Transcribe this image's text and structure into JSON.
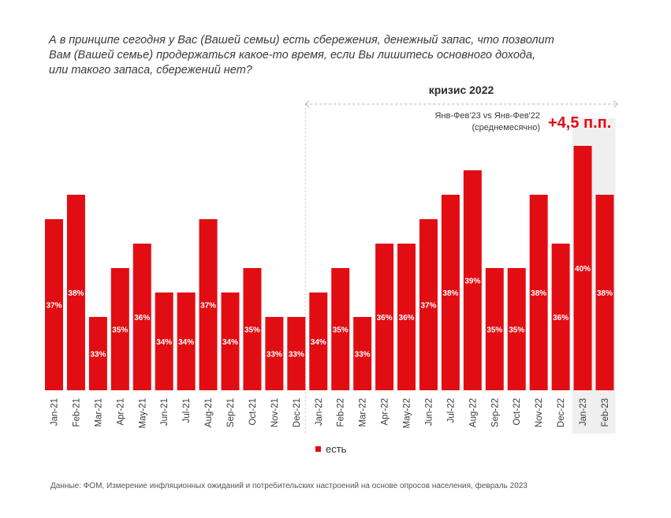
{
  "question": {
    "line1": "А в принципе сегодня у Вас (Вашей семьи) есть сбережения, денежный запас, что позволит",
    "line2": "Вам (Вашей семье) продержаться какое-то время, если Вы лишитесь основного дохода,",
    "line3": "или такого запаса, сбережений нет?"
  },
  "crisis": {
    "label": "кризис 2022",
    "compare_line1": "Янв-Фев'23 vs Янв-Фев'22",
    "compare_line2": "(среднемесячно)",
    "delta": "+4,5 п.п."
  },
  "legend": {
    "label": "есть"
  },
  "source": "Данные: ФОМ, Измерение инфляционных ожиданий и потребительских настроений на основе опросов населения, февраль 2023",
  "chart_data": {
    "type": "bar",
    "series": [
      {
        "name": "есть",
        "values": [
          37,
          38,
          33,
          35,
          36,
          34,
          34,
          37,
          34,
          35,
          33,
          33,
          34,
          35,
          33,
          36,
          36,
          37,
          38,
          39,
          35,
          35,
          38,
          36,
          40,
          38
        ]
      }
    ],
    "categories": [
      "Jan-21",
      "Feb-21",
      "Mar-21",
      "Apr-21",
      "May-21",
      "Jun-21",
      "Jul-21",
      "Aug-21",
      "Sep-21",
      "Oct-21",
      "Nov-21",
      "Dec-21",
      "Jan-22",
      "Feb-22",
      "Mar-22",
      "Apr-22",
      "May-22",
      "Jun-22",
      "Jul-22",
      "Aug-22",
      "Sep-22",
      "Oct-22",
      "Nov-22",
      "Dec-22",
      "Jan-23",
      "Feb-23"
    ],
    "data_labels": [
      "37%",
      "38%",
      "33%",
      "35%",
      "36%",
      "34%",
      "34%",
      "37%",
      "34%",
      "35%",
      "33%",
      "33%",
      "34%",
      "35%",
      "33%",
      "36%",
      "36%",
      "37%",
      "38%",
      "39%",
      "35%",
      "35%",
      "38%",
      "36%",
      "40%",
      "38%"
    ],
    "highlight_categories": [
      "Jan-23",
      "Feb-23"
    ],
    "crisis_range": [
      "Jan-22",
      "Feb-23"
    ],
    "ylim": [
      30,
      40
    ],
    "color": "#e20d13",
    "highlight_bg": "#efefef",
    "title": "",
    "xlabel": "",
    "ylabel": ""
  }
}
